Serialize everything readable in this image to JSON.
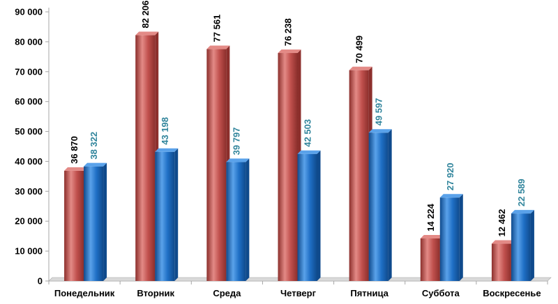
{
  "colors": {
    "series_red": "#c0504d",
    "series_red_dark": "#8c2f2c",
    "series_red_light": "#e38a86",
    "series_blue": "#1f6fc5",
    "series_blue_dark": "#0f4a8c",
    "series_blue_light": "#5aa2ea",
    "label_red": "#000000",
    "label_blue": "#31859c",
    "axis": "#a6a6a6"
  },
  "chart_data": {
    "type": "bar",
    "categories": [
      "Понедельник",
      "Вторник",
      "Среда",
      "Четверг",
      "Пятница",
      "Суббота",
      "Воскресенье"
    ],
    "series": [
      {
        "values": [
          36870,
          82206,
          77561,
          76238,
          70499,
          14224,
          12462
        ],
        "labels": [
          "36 870",
          "82 206",
          "77 561",
          "76 238",
          "70 499",
          "14 224",
          "12 462"
        ]
      },
      {
        "values": [
          38322,
          43198,
          39797,
          42503,
          49597,
          27920,
          22589
        ],
        "labels": [
          "38 322",
          "43 198",
          "39 797",
          "42 503",
          "49 597",
          "27 920",
          "22 589"
        ]
      }
    ],
    "yticks": [
      0,
      10000,
      20000,
      30000,
      40000,
      50000,
      60000,
      70000,
      80000,
      90000
    ],
    "ytick_labels": [
      "0",
      "10 000",
      "20 000",
      "30 000",
      "40 000",
      "50 000",
      "60 000",
      "70 000",
      "80 000",
      "90 000"
    ],
    "ylim": [
      0,
      90000
    ],
    "grid": false,
    "legend": "none"
  }
}
